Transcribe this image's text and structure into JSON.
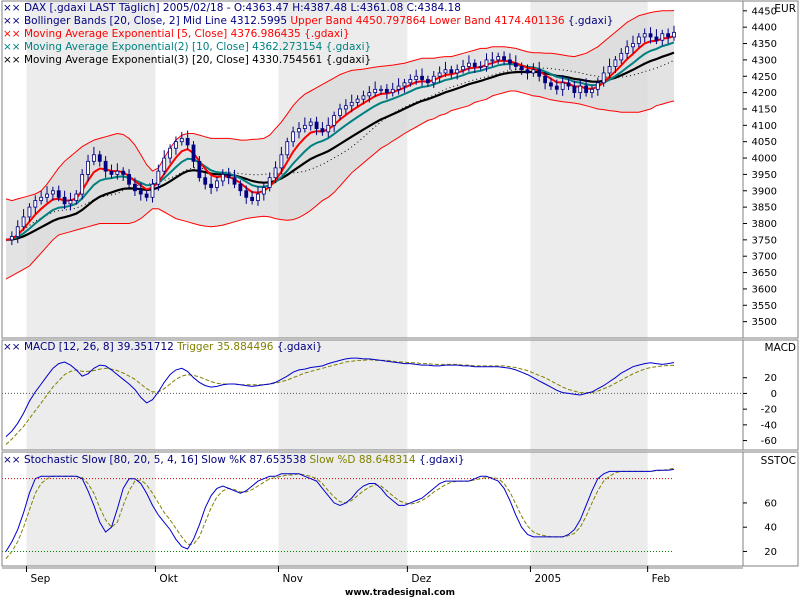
{
  "colors": {
    "background": "#ffffff",
    "band_alt": "#ececec",
    "bb_fill": "#d9d9d9",
    "bb_bands": "#ff0000",
    "bb_mid": "#000000",
    "ema5": "#ff0000",
    "ema10": "#008080",
    "ema20": "#000000",
    "candle": "#000080",
    "macd": "#0000cc",
    "trigger": "#808000",
    "stoch_k": "#0000cc",
    "stoch_d": "#808000",
    "hline_red": "#cc0000",
    "hline_green": "#008000"
  },
  "legend_main": {
    "line1": "DAX [.gdaxi LAST Täglich] 2005/02/18 - O:4363.47 H:4387.48 L:4361.08 C:4384.18",
    "line2a": "Bollinger Bands [20, Close, 2] Mid Line 4312.5995 ",
    "line2b": "Upper Band 4450.797864 Lower Band 4174.401136 ",
    "line2c": "{.gdaxi}",
    "line3": "Moving Average Exponential [5, Close] 4376.986435 {.gdaxi}",
    "line4": "Moving Average Exponential(2) [10, Close] 4362.273154 {.gdaxi}",
    "line5": "Moving Average Exponential(3) [20, Close] 4330.754561 {.gdaxi}"
  },
  "legend_macd": {
    "a": "MACD [12, 26, 8] 39.351712 ",
    "b": "Trigger 35.884496 ",
    "c": "{.gdaxi}"
  },
  "legend_stoch": {
    "a": "Stochastic Slow [80, 20, 5, 4, 16] Slow %K 87.653538 ",
    "b": "Slow %D 88.648314 ",
    "c": "{.gdaxi}"
  },
  "pane_labels": {
    "main": "EUR",
    "macd": "MACD",
    "stoch": "SSTOC"
  },
  "footer": "www.tradesignal.com",
  "chart_data": {
    "type": "line",
    "x_labels": [
      "Sep",
      "Okt",
      "Nov",
      "Dez",
      "2005",
      "Feb"
    ],
    "x_label_index": [
      5,
      27,
      48,
      70,
      91,
      111
    ],
    "main": {
      "y_ticks": [
        3500,
        3550,
        3600,
        3650,
        3700,
        3750,
        3800,
        3850,
        3900,
        3950,
        4000,
        4050,
        4100,
        4150,
        4200,
        4250,
        4300,
        4350,
        4400,
        4450
      ],
      "ylim": [
        3450,
        4480
      ],
      "close": [
        3750,
        3760,
        3790,
        3820,
        3850,
        3870,
        3880,
        3890,
        3900,
        3880,
        3860,
        3870,
        3890,
        3950,
        3990,
        4010,
        3990,
        3960,
        3950,
        3960,
        3950,
        3920,
        3900,
        3890,
        3880,
        3920,
        3960,
        4000,
        4030,
        4050,
        4060,
        4040,
        3990,
        3940,
        3920,
        3910,
        3930,
        3950,
        3940,
        3920,
        3900,
        3880,
        3870,
        3890,
        3910,
        3940,
        3970,
        4010,
        4050,
        4080,
        4090,
        4100,
        4110,
        4090,
        4080,
        4100,
        4130,
        4150,
        4160,
        4170,
        4180,
        4190,
        4200,
        4210,
        4210,
        4200,
        4210,
        4220,
        4230,
        4240,
        4250,
        4240,
        4230,
        4250,
        4260,
        4270,
        4260,
        4270,
        4280,
        4290,
        4280,
        4280,
        4300,
        4300,
        4310,
        4300,
        4290,
        4280,
        4270,
        4260,
        4270,
        4250,
        4230,
        4220,
        4210,
        4230,
        4220,
        4200,
        4220,
        4200,
        4210,
        4230,
        4260,
        4280,
        4300,
        4320,
        4340,
        4350,
        4370,
        4380,
        4370,
        4360,
        4380,
        4370,
        4384.18
      ],
      "bb_upper": [
        3875,
        3870,
        3875,
        3880,
        3885,
        3890,
        3900,
        3920,
        3945,
        3970,
        3990,
        4005,
        4020,
        4035,
        4045,
        4055,
        4060,
        4065,
        4070,
        4075,
        4072,
        4060,
        4040,
        4010,
        3980,
        3960,
        3970,
        4000,
        4030,
        4055,
        4070,
        4075,
        4075,
        4070,
        4065,
        4060,
        4060,
        4060,
        4060,
        4058,
        4055,
        4055,
        4057,
        4058,
        4060,
        4070,
        4090,
        4110,
        4135,
        4160,
        4180,
        4195,
        4205,
        4215,
        4225,
        4235,
        4245,
        4255,
        4262,
        4268,
        4270,
        4272,
        4275,
        4278,
        4280,
        4282,
        4284,
        4287,
        4290,
        4295,
        4300,
        4305,
        4305,
        4305,
        4308,
        4310,
        4310,
        4315,
        4320,
        4325,
        4330,
        4335,
        4335,
        4340,
        4340,
        4340,
        4338,
        4335,
        4330,
        4325,
        4322,
        4322,
        4320,
        4320,
        4318,
        4315,
        4312,
        4310,
        4315,
        4320,
        4330,
        4340,
        4355,
        4370,
        4385,
        4400,
        4415,
        4425,
        4435,
        4440,
        4445,
        4448,
        4450,
        4450,
        4450.8
      ],
      "bb_lower": [
        3630,
        3640,
        3650,
        3660,
        3670,
        3690,
        3710,
        3730,
        3750,
        3765,
        3770,
        3775,
        3780,
        3785,
        3790,
        3795,
        3800,
        3800,
        3800,
        3800,
        3800,
        3800,
        3805,
        3815,
        3830,
        3845,
        3845,
        3835,
        3825,
        3815,
        3810,
        3805,
        3800,
        3795,
        3792,
        3790,
        3792,
        3795,
        3800,
        3805,
        3810,
        3815,
        3818,
        3820,
        3822,
        3820,
        3815,
        3812,
        3810,
        3812,
        3818,
        3828,
        3840,
        3855,
        3870,
        3880,
        3895,
        3915,
        3935,
        3955,
        3970,
        3985,
        4000,
        4015,
        4030,
        4040,
        4052,
        4063,
        4075,
        4085,
        4095,
        4105,
        4115,
        4120,
        4130,
        4135,
        4145,
        4150,
        4155,
        4160,
        4170,
        4175,
        4180,
        4190,
        4195,
        4200,
        4205,
        4205,
        4200,
        4195,
        4190,
        4188,
        4183,
        4178,
        4175,
        4172,
        4170,
        4168,
        4165,
        4160,
        4155,
        4150,
        4148,
        4145,
        4143,
        4140,
        4140,
        4140,
        4140,
        4145,
        4150,
        4160,
        4165,
        4170,
        4174.4
      ]
    },
    "macd": {
      "y_ticks": [
        -60,
        -40,
        -20,
        0,
        20
      ],
      "ylim": [
        -72,
        68
      ],
      "macd": [
        -55,
        -48,
        -38,
        -25,
        -10,
        2,
        12,
        22,
        32,
        38,
        40,
        36,
        30,
        22,
        25,
        32,
        36,
        35,
        30,
        24,
        18,
        12,
        5,
        -5,
        -12,
        -8,
        2,
        14,
        24,
        30,
        32,
        28,
        20,
        14,
        10,
        8,
        9,
        11,
        12,
        12,
        11,
        10,
        9,
        10,
        11,
        12,
        14,
        18,
        22,
        27,
        30,
        31,
        33,
        34,
        35,
        38,
        40,
        42,
        44,
        45,
        45,
        44,
        44,
        43,
        42,
        41,
        40,
        39,
        38,
        38,
        37,
        36,
        36,
        35,
        35,
        36,
        36,
        36,
        35,
        35,
        34,
        34,
        34,
        34,
        34,
        33,
        32,
        30,
        27,
        24,
        20,
        16,
        12,
        8,
        4,
        1,
        0,
        -1,
        -2,
        0,
        2,
        6,
        10,
        15,
        20,
        26,
        30,
        34,
        36,
        38,
        39,
        38,
        37,
        38,
        39.35
      ],
      "trigger": [
        -65,
        -58,
        -50,
        -42,
        -32,
        -22,
        -12,
        -2,
        8,
        16,
        24,
        28,
        30,
        28,
        28,
        29,
        31,
        32,
        31,
        29,
        26,
        22,
        18,
        12,
        6,
        2,
        2,
        6,
        12,
        18,
        22,
        24,
        23,
        21,
        18,
        15,
        13,
        12,
        12,
        12,
        11,
        11,
        11,
        11,
        11,
        12,
        13,
        15,
        17,
        20,
        23,
        26,
        28,
        30,
        32,
        34,
        36,
        38,
        40,
        41,
        42,
        42,
        43,
        42,
        42,
        42,
        41,
        40,
        40,
        39,
        39,
        38,
        38,
        37,
        37,
        37,
        37,
        37,
        36,
        36,
        35,
        35,
        35,
        35,
        35,
        35,
        34,
        33,
        31,
        29,
        26,
        23,
        20,
        16,
        12,
        8,
        5,
        3,
        1,
        1,
        1,
        3,
        6,
        9,
        13,
        17,
        21,
        25,
        28,
        31,
        33,
        34,
        35,
        35.5,
        35.88
      ]
    },
    "stoch": {
      "y_ticks": [
        20,
        40,
        60
      ],
      "ylim": [
        8,
        102
      ],
      "upper_line": 80,
      "lower_line": 20,
      "k": [
        20,
        28,
        38,
        52,
        68,
        80,
        82,
        82,
        82,
        82,
        82,
        82,
        82,
        80,
        70,
        58,
        44,
        36,
        40,
        55,
        72,
        80,
        80,
        76,
        68,
        58,
        50,
        44,
        38,
        30,
        24,
        22,
        30,
        42,
        56,
        66,
        72,
        74,
        72,
        70,
        68,
        70,
        74,
        78,
        80,
        82,
        82,
        84,
        84,
        84,
        84,
        82,
        80,
        78,
        72,
        66,
        60,
        58,
        60,
        64,
        70,
        74,
        76,
        76,
        72,
        66,
        62,
        58,
        58,
        60,
        62,
        64,
        68,
        72,
        76,
        78,
        78,
        78,
        78,
        78,
        80,
        82,
        82,
        80,
        78,
        72,
        62,
        50,
        40,
        34,
        32,
        32,
        32,
        32,
        32,
        32,
        34,
        38,
        46,
        58,
        70,
        80,
        84,
        86,
        86,
        86,
        86,
        86,
        86,
        86,
        86,
        87,
        87,
        87,
        87.65
      ],
      "d": [
        14,
        20,
        28,
        40,
        54,
        68,
        76,
        80,
        82,
        82,
        82,
        82,
        82,
        81,
        76,
        68,
        56,
        46,
        40,
        44,
        58,
        70,
        78,
        79,
        75,
        68,
        60,
        52,
        46,
        39,
        32,
        26,
        26,
        32,
        44,
        56,
        65,
        70,
        72,
        71,
        69,
        69,
        71,
        74,
        77,
        80,
        81,
        82,
        83,
        83,
        84,
        83,
        82,
        80,
        76,
        70,
        65,
        61,
        60,
        62,
        66,
        70,
        73,
        75,
        74,
        70,
        66,
        62,
        60,
        59,
        60,
        62,
        65,
        69,
        72,
        75,
        77,
        78,
        78,
        78,
        79,
        80,
        81,
        81,
        80,
        76,
        69,
        59,
        49,
        41,
        36,
        34,
        33,
        32,
        32,
        32,
        33,
        35,
        40,
        49,
        60,
        70,
        78,
        82,
        85,
        86,
        86,
        86,
        86,
        86,
        86,
        86.5,
        87,
        87.5,
        88.65
      ]
    }
  }
}
